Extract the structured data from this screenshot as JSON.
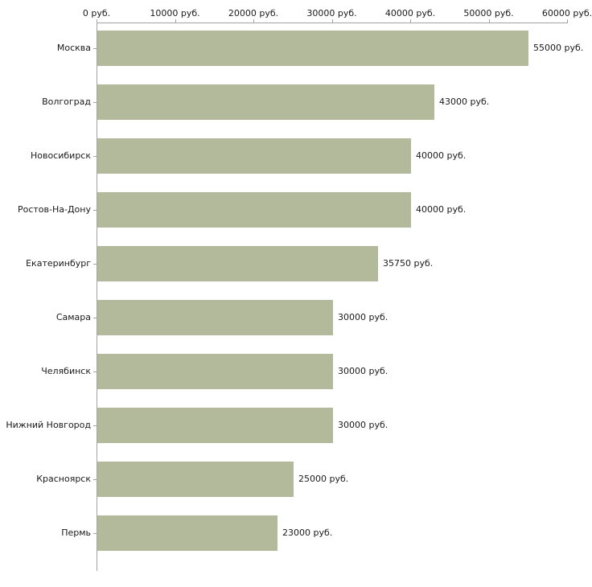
{
  "chart_data": {
    "type": "bar",
    "orientation": "horizontal",
    "title": "",
    "xlabel": "",
    "ylabel": "",
    "categories": [
      "Москва",
      "Волгоград",
      "Новосибирск",
      "Ростов-На-Дону",
      "Екатеринбург",
      "Самара",
      "Челябинск",
      "Нижний Новгород",
      "Красноярск",
      "Пермь"
    ],
    "values": [
      55000,
      43000,
      40000,
      40000,
      35750,
      30000,
      30000,
      30000,
      25000,
      23000
    ],
    "value_labels": [
      "55000 руб.",
      "43000 руб.",
      "40000 руб.",
      "40000 руб.",
      "35750 руб.",
      "30000 руб.",
      "30000 руб.",
      "30000 руб.",
      "25000 руб.",
      "23000 руб."
    ],
    "x_ticks": [
      0,
      10000,
      20000,
      30000,
      40000,
      50000,
      60000
    ],
    "x_tick_labels": [
      "0 руб.",
      "10000 руб.",
      "20000 руб.",
      "30000 руб.",
      "40000 руб.",
      "50000 руб.",
      "60000 руб."
    ],
    "xlim": [
      0,
      60000
    ],
    "bar_color": "#b3b99b",
    "axis_color": "#a3a3a3",
    "background_color": "#ffffff",
    "grid": false,
    "legend": false,
    "tick_label_position": "top"
  }
}
